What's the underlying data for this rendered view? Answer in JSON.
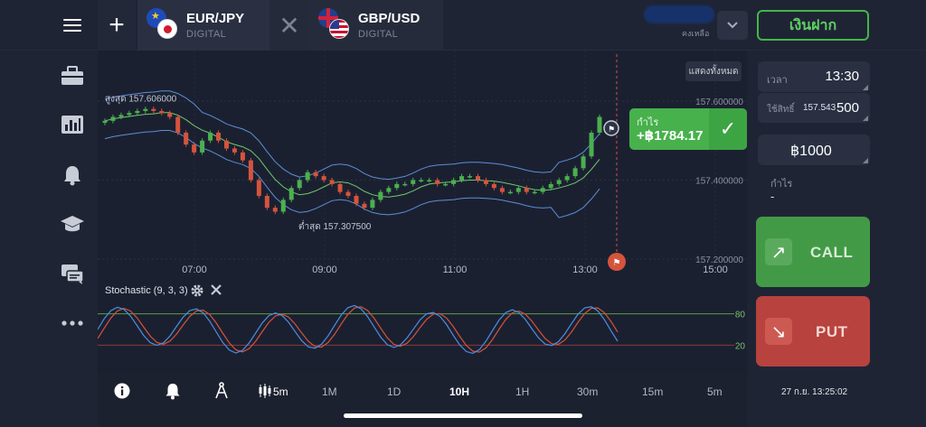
{
  "header": {
    "tabs": [
      {
        "pair": "EUR/JPY",
        "kind": "DIGITAL"
      },
      {
        "pair": "GBP/USD",
        "kind": "DIGITAL"
      }
    ],
    "balance_label": "คงเหลือ",
    "deposit_label": "เงินฝาก"
  },
  "chart": {
    "show_all_label": "แสดงทั้งหมด",
    "high_label": "สูงสุด 157.606000",
    "low_label": "ต่ำสุด 157.307500",
    "price_ticks": [
      "157.600000",
      "157.400000",
      "157.200000"
    ],
    "time_ticks": [
      "07:00",
      "09:00",
      "11:00",
      "13:00",
      "15:00"
    ],
    "stoch_label": "Stochastic (9, 3, 3)",
    "stoch_levels": [
      "80",
      "20"
    ],
    "profit_label": "กำไร",
    "profit_value": "+฿1784.17"
  },
  "chart_data": {
    "type": "candlestick",
    "price_axis": {
      "min": 157.2,
      "max": 157.6
    },
    "high": 157.606,
    "low": 157.3075,
    "closes": [
      157.55,
      157.56,
      157.565,
      157.57,
      157.575,
      157.58,
      157.575,
      157.57,
      157.56,
      157.52,
      157.49,
      157.47,
      157.5,
      157.52,
      157.5,
      157.48,
      157.47,
      157.45,
      157.4,
      157.36,
      157.33,
      157.32,
      157.35,
      157.38,
      157.4,
      157.42,
      157.41,
      157.4,
      157.39,
      157.37,
      157.36,
      157.34,
      157.33,
      157.35,
      157.37,
      157.38,
      157.39,
      157.39,
      157.4,
      157.4,
      157.4,
      157.39,
      157.39,
      157.4,
      157.41,
      157.41,
      157.4,
      157.39,
      157.38,
      157.37,
      157.37,
      157.38,
      157.37,
      157.37,
      157.38,
      157.39,
      157.4,
      157.41,
      157.43,
      157.46,
      157.52,
      157.56
    ],
    "stochastic": {
      "params": "9, 3, 3",
      "levels": [
        80,
        20
      ]
    }
  },
  "panel": {
    "time_label": "เวลา",
    "time_value": "13:30",
    "strike_label": "ใช้สิทธิ์",
    "strike_price": "157.543",
    "strike_amount": "500",
    "amount_value": "฿1000",
    "profit_label": "กำไร",
    "profit_value": "-",
    "call_label": "CALL",
    "put_label": "PUT"
  },
  "bottom": {
    "candle_label": "5m",
    "timeframes": [
      "1M",
      "1D",
      "10H",
      "1H",
      "30m",
      "15m",
      "5m"
    ],
    "active_timeframe": "10H",
    "datetime": "27 ก.ย. 13:25:02"
  },
  "colors": {
    "green": "#47b14c",
    "red": "#b8423d",
    "bollinger": "#5b8fd6",
    "ma": "#6fc96a",
    "stoch_k": "#4c8ee0",
    "stoch_d": "#d5533a"
  }
}
